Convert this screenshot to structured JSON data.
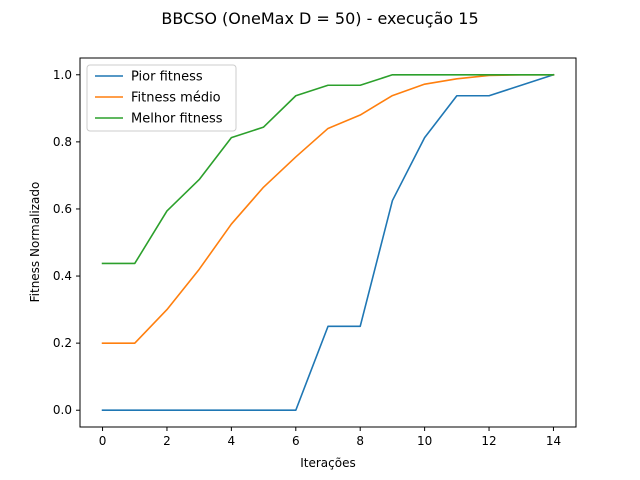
{
  "chart_data": {
    "type": "line",
    "title": "BBCSO (OneMax D = 50) - execução 15",
    "xlabel": "Iterações",
    "ylabel": "Fitness Normalizado",
    "xlim": [
      -0.7,
      14.7
    ],
    "ylim": [
      -0.05,
      1.05
    ],
    "xticks": [
      0,
      2,
      4,
      6,
      8,
      10,
      12,
      14
    ],
    "yticks": [
      0.0,
      0.2,
      0.4,
      0.6,
      0.8,
      1.0
    ],
    "ytick_labels": [
      "0.0",
      "0.2",
      "0.4",
      "0.6",
      "0.8",
      "1.0"
    ],
    "grid": false,
    "legend_position": "top-left",
    "x": [
      0,
      1,
      2,
      3,
      4,
      5,
      6,
      7,
      8,
      9,
      10,
      11,
      12,
      13,
      14
    ],
    "series": [
      {
        "name": "Pior fitness",
        "color": "#1f77b4",
        "values": [
          0.0,
          0.0,
          0.0,
          0.0,
          0.0,
          0.0,
          0.0,
          0.25,
          0.25,
          0.625,
          0.8125,
          0.9375,
          0.9375,
          0.96875,
          1.0
        ]
      },
      {
        "name": "Fitness médio",
        "color": "#ff7f0e",
        "values": [
          0.2,
          0.2,
          0.3,
          0.42,
          0.555,
          0.665,
          0.755,
          0.84,
          0.88,
          0.938,
          0.972,
          0.988,
          0.998,
          1.0,
          1.0
        ]
      },
      {
        "name": "Melhor fitness",
        "color": "#2ca02c",
        "values": [
          0.4375,
          0.4375,
          0.594,
          0.6875,
          0.8125,
          0.844,
          0.9375,
          0.96875,
          0.96875,
          1.0,
          1.0,
          1.0,
          1.0,
          1.0,
          1.0
        ]
      }
    ]
  }
}
